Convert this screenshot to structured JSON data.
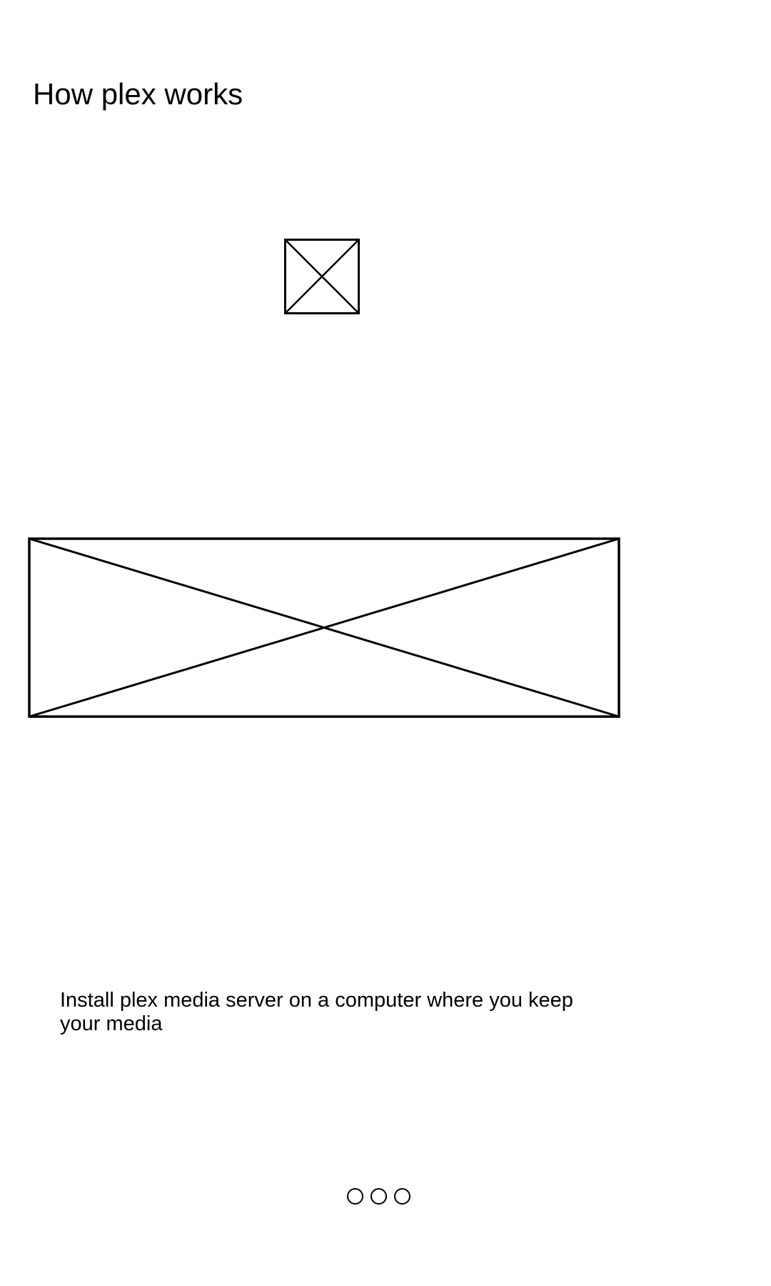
{
  "screen": {
    "title": "How plex works",
    "description": "Install plex media server on a computer where you keep your media"
  },
  "media": {
    "icon_image": "image-placeholder-icon",
    "banner_image": "image-placeholder-icon"
  },
  "pager": {
    "dots": [
      "page-dot",
      "page-dot",
      "page-dot"
    ]
  }
}
